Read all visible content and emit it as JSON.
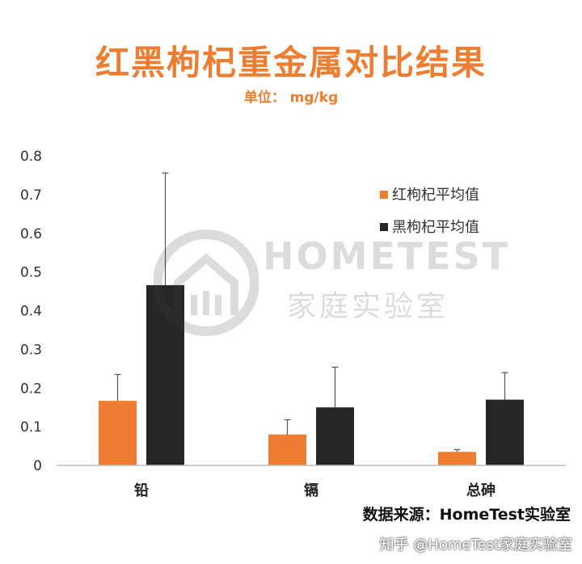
{
  "chart_data": {
    "type": "bar",
    "title": "红黑枸杞重金属对比结果",
    "subtitle": "单位： mg/kg",
    "categories": [
      "铅",
      "镉",
      "总砷"
    ],
    "series": [
      {
        "name": "红枸杞平均值",
        "color": "#ED7D31",
        "values": [
          0.167,
          0.08,
          0.035
        ],
        "errors": [
          0.068,
          0.038,
          0.006
        ]
      },
      {
        "name": "黑枸杞平均值",
        "color": "#262626",
        "values": [
          0.466,
          0.15,
          0.17
        ],
        "errors": [
          0.29,
          0.104,
          0.07
        ]
      }
    ],
    "ylim": [
      0,
      0.8
    ],
    "yticks": [
      "0",
      "0.1",
      "0.2",
      "0.3",
      "0.4",
      "0.5",
      "0.6",
      "0.7",
      "0.8"
    ],
    "grid": false,
    "legend": "right"
  },
  "watermark": {
    "line1": "HOMETEST",
    "line2": "家庭实验室"
  },
  "source": "数据来源：HomeTest实验室",
  "footer": "知乎 @HomeTest家庭实验室"
}
